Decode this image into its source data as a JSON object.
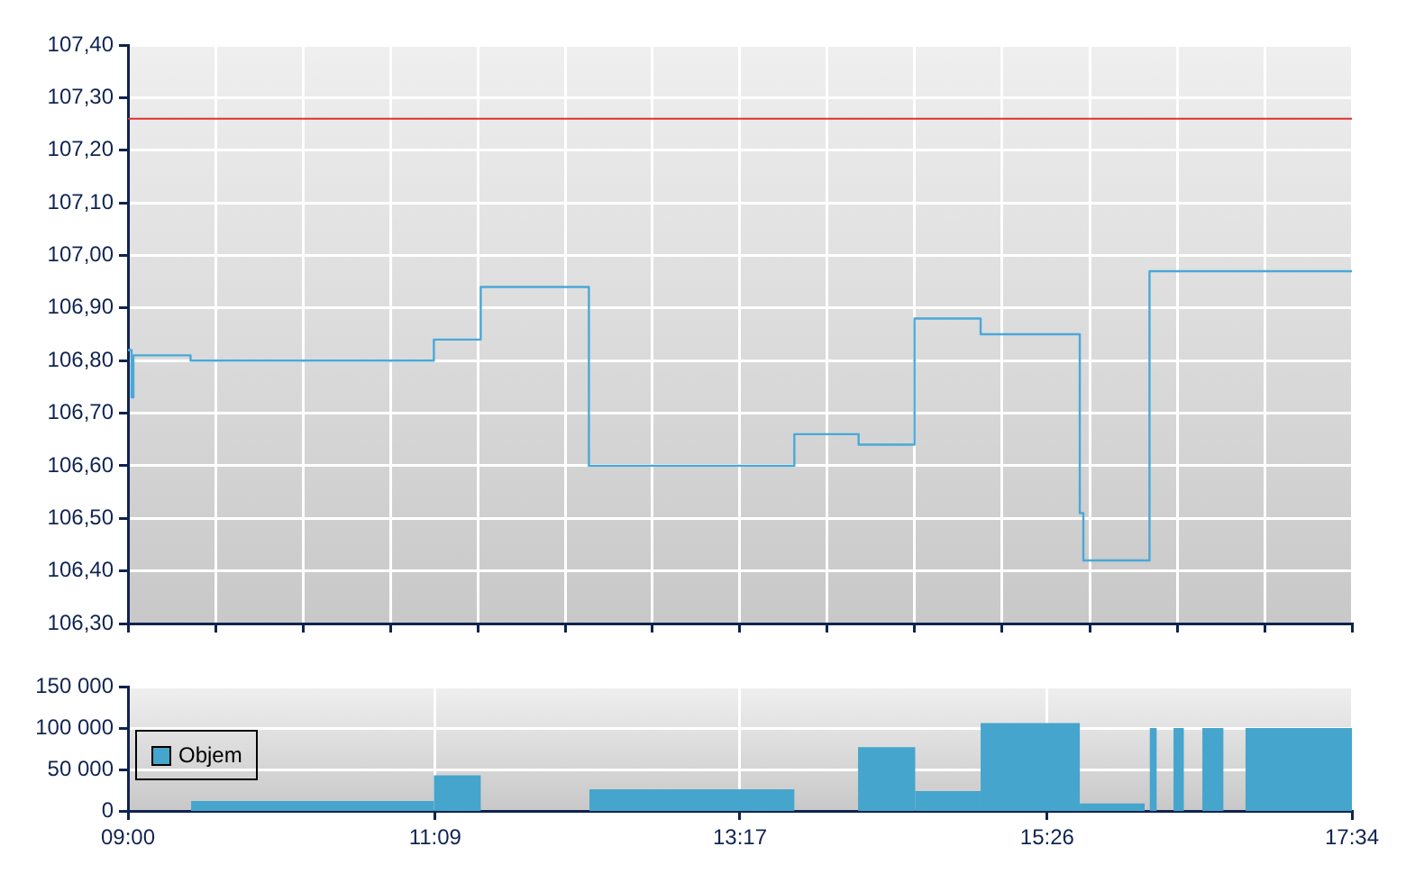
{
  "chart_data": [
    {
      "type": "step",
      "xlim": [
        9,
        17.5667
      ],
      "xticks": [
        {
          "value": 9,
          "label": null
        },
        {
          "value": 9.612,
          "label": null
        },
        {
          "value": 10.224,
          "label": null
        },
        {
          "value": 10.836,
          "label": null
        },
        {
          "value": 11.448,
          "label": null
        },
        {
          "value": 12.06,
          "label": null
        },
        {
          "value": 12.671,
          "label": null
        },
        {
          "value": 13.283,
          "label": null
        },
        {
          "value": 13.895,
          "label": null
        },
        {
          "value": 14.507,
          "label": null
        },
        {
          "value": 15.119,
          "label": null
        },
        {
          "value": 15.731,
          "label": null
        },
        {
          "value": 16.343,
          "label": null
        },
        {
          "value": 16.955,
          "label": null
        },
        {
          "value": 17.5667,
          "label": null
        }
      ],
      "ylim": [
        106.3,
        107.4
      ],
      "yticks": [
        {
          "value": 106.3,
          "label": "106,30"
        },
        {
          "value": 106.4,
          "label": "106,40"
        },
        {
          "value": 106.5,
          "label": "106,50"
        },
        {
          "value": 106.6,
          "label": "106,60"
        },
        {
          "value": 106.7,
          "label": "106,70"
        },
        {
          "value": 106.8,
          "label": "106,80"
        },
        {
          "value": 106.9,
          "label": "106,90"
        },
        {
          "value": 107.0,
          "label": "107,00"
        },
        {
          "value": 107.1,
          "label": "107,10"
        },
        {
          "value": 107.2,
          "label": "107,20"
        },
        {
          "value": 107.3,
          "label": "107,30"
        },
        {
          "value": 107.4,
          "label": "107,40"
        }
      ],
      "x": [
        9.0,
        9.025,
        9.038,
        9.438,
        11.141,
        11.469,
        12.226,
        13.664,
        14.114,
        14.505,
        14.968,
        15.662,
        15.687,
        16.15,
        17.5667
      ],
      "series": [
        {
          "color": "#4aa8d8",
          "values": [
            106.82,
            106.73,
            106.81,
            106.8,
            106.84,
            106.94,
            106.6,
            106.66,
            106.64,
            106.88,
            106.85,
            106.51,
            106.42,
            106.97,
            106.97
          ]
        }
      ],
      "ref_lines": [
        {
          "axis": "y",
          "value": 107.26,
          "color": "#e03030"
        }
      ],
      "grid": true,
      "tick_labels": "y"
    },
    {
      "type": "histogram",
      "xlim": [
        9,
        17.5667
      ],
      "xticks": [
        {
          "value": 9,
          "label": "09:00"
        },
        {
          "value": 11.15,
          "label": "11:09"
        },
        {
          "value": 13.2833,
          "label": "13:17"
        },
        {
          "value": 15.4333,
          "label": "15:26"
        },
        {
          "value": 17.5667,
          "label": "17:34"
        }
      ],
      "ylim": [
        0,
        150000
      ],
      "yticks": [
        {
          "value": 0,
          "label": "0"
        },
        {
          "value": 50000,
          "label": "50 000"
        },
        {
          "value": 100000,
          "label": "100 000"
        },
        {
          "value": 150000,
          "label": "150 000"
        }
      ],
      "bins": [
        9.442,
        11.141,
        11.469,
        12.23,
        13.664,
        14.11,
        14.51,
        14.968,
        15.662,
        16.116,
        16.152,
        16.2,
        16.318,
        16.39,
        16.52,
        16.667,
        16.822,
        17.5667
      ],
      "series": [
        {
          "name": "Objem",
          "color": "#45a5cd",
          "values": [
            12000,
            43000,
            0,
            26000,
            0,
            77000,
            24000,
            106000,
            9000,
            0,
            100000,
            0,
            100000,
            0,
            100000,
            0,
            100000
          ]
        }
      ],
      "legend": "left",
      "grid": true
    }
  ]
}
